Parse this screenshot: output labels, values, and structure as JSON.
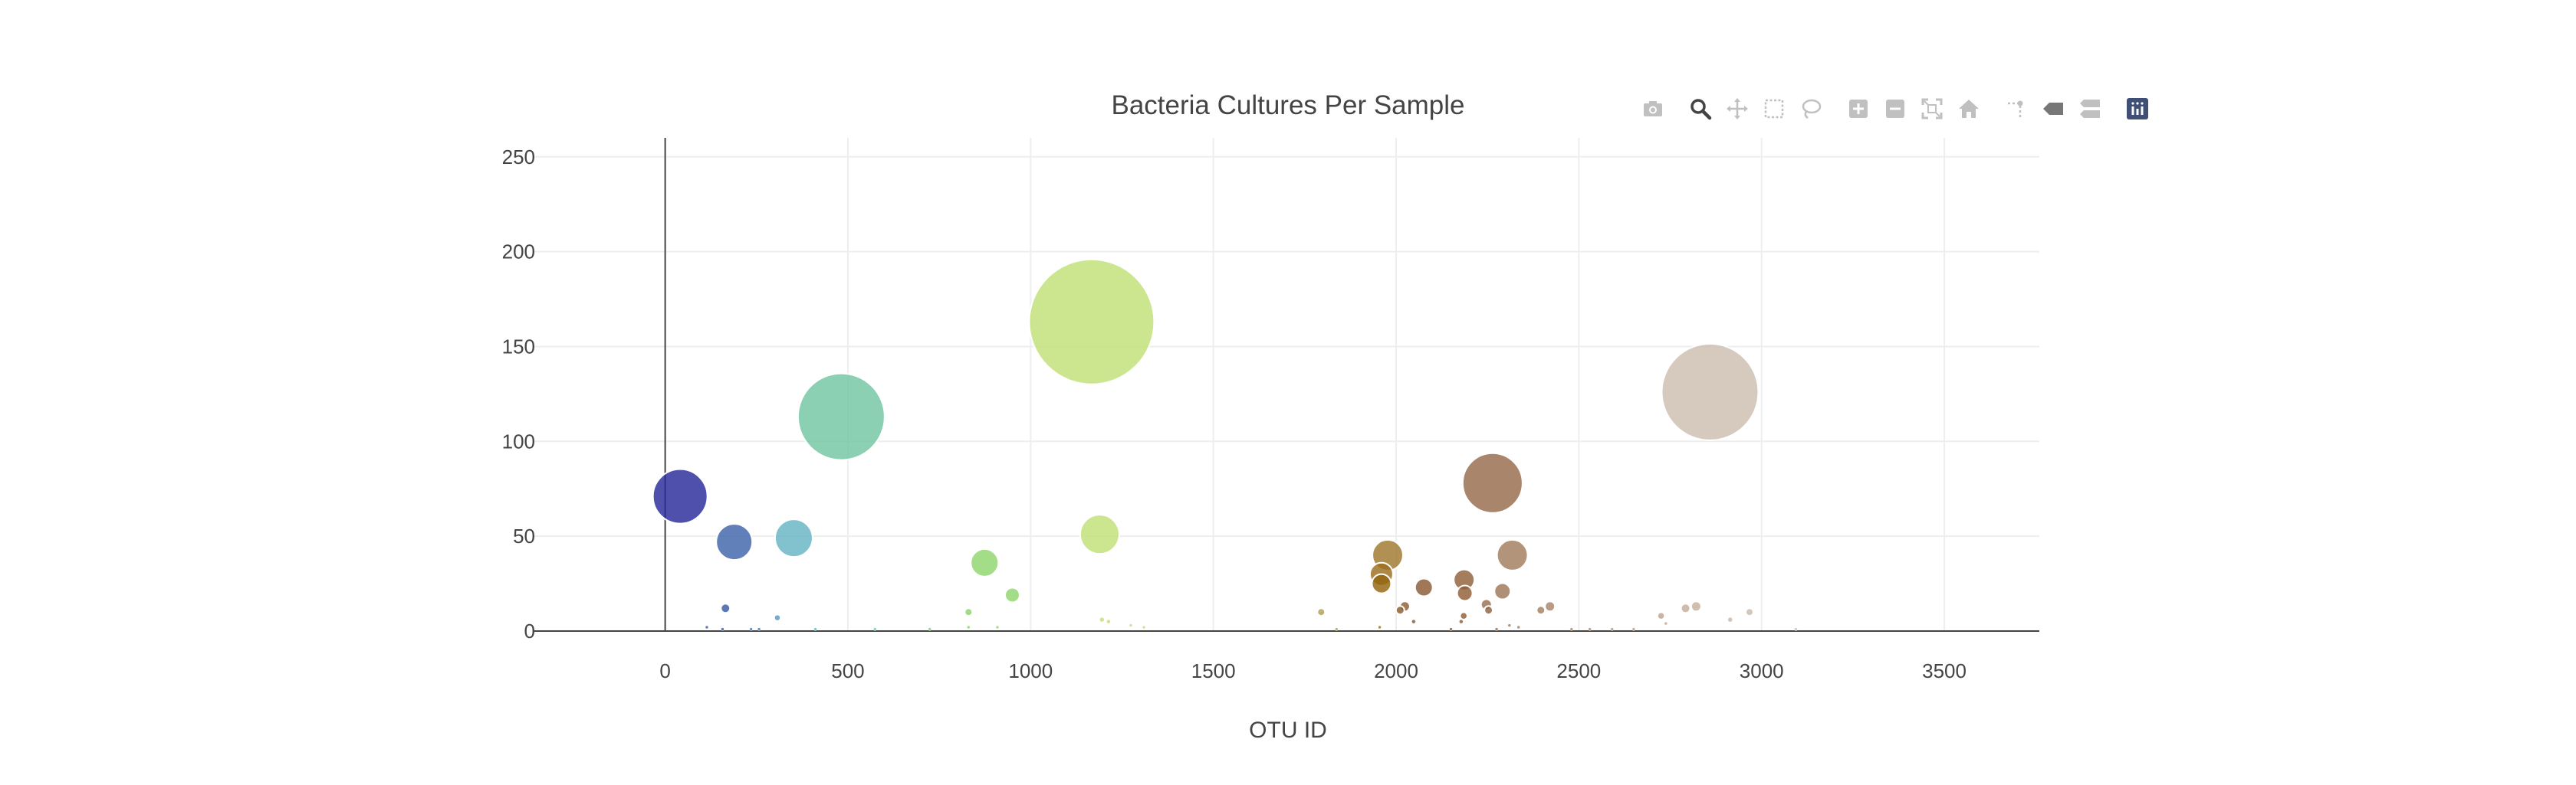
{
  "chart_data": {
    "type": "scatter",
    "title": "Bacteria Cultures Per Sample",
    "xlabel": "OTU ID",
    "ylabel": "",
    "xlim": [
      -360,
      3760
    ],
    "ylim": [
      0,
      260
    ],
    "xticks": [
      0,
      500,
      1000,
      1500,
      2000,
      2500,
      3000,
      3500
    ],
    "yticks": [
      0,
      50,
      100,
      150,
      200,
      250
    ],
    "grid": true,
    "legend": "none",
    "marker_size_encodes": "sample value",
    "marker_color_encodes": "OTU ID",
    "points": [
      {
        "x": 41,
        "y": 71,
        "color": "#272a99"
      },
      {
        "x": 189,
        "y": 47,
        "color": "#3e63a8"
      },
      {
        "x": 352,
        "y": 49,
        "color": "#66b3c3"
      },
      {
        "x": 482,
        "y": 113,
        "color": "#72c6a1"
      },
      {
        "x": 1167,
        "y": 163,
        "color": "#bfe176"
      },
      {
        "x": 1189,
        "y": 51,
        "color": "#bfe176"
      },
      {
        "x": 874,
        "y": 36,
        "color": "#8fd56c"
      },
      {
        "x": 950,
        "y": 19,
        "color": "#8fd56c"
      },
      {
        "x": 2264,
        "y": 78,
        "color": "#956a4b"
      },
      {
        "x": 2859,
        "y": 126,
        "color": "#cdbeb0"
      },
      {
        "x": 1977,
        "y": 40,
        "color": "#a0782e"
      },
      {
        "x": 2318,
        "y": 40,
        "color": "#a07c5d"
      },
      {
        "x": 1960,
        "y": 30,
        "color": "#9b6e1e"
      },
      {
        "x": 1960,
        "y": 25,
        "color": "#94650f"
      },
      {
        "x": 2186,
        "y": 27,
        "color": "#906039"
      },
      {
        "x": 2076,
        "y": 23,
        "color": "#8a5a35"
      },
      {
        "x": 2188,
        "y": 20,
        "color": "#8f5e37"
      },
      {
        "x": 2291,
        "y": 21,
        "color": "#9e7658"
      },
      {
        "x": 2247,
        "y": 14,
        "color": "#98704f"
      },
      {
        "x": 2253,
        "y": 11,
        "color": "#8e6442"
      },
      {
        "x": 2024,
        "y": 13,
        "color": "#8d5e33"
      },
      {
        "x": 2011,
        "y": 11,
        "color": "#8a5a2e"
      },
      {
        "x": 2421,
        "y": 13,
        "color": "#a98469"
      },
      {
        "x": 2396,
        "y": 11,
        "color": "#a48063"
      },
      {
        "x": 2792,
        "y": 12,
        "color": "#c4ac98"
      },
      {
        "x": 2821,
        "y": 13,
        "color": "#c6b09e"
      },
      {
        "x": 2967,
        "y": 10,
        "color": "#cbbcae"
      },
      {
        "x": 2725,
        "y": 8,
        "color": "#bfa48f"
      },
      {
        "x": 1795,
        "y": 10,
        "color": "#b09f58"
      },
      {
        "x": 165,
        "y": 12,
        "color": "#3a5aa5"
      },
      {
        "x": 307,
        "y": 7,
        "color": "#5a99c0"
      },
      {
        "x": 830,
        "y": 10,
        "color": "#8cd26a"
      },
      {
        "x": 2914,
        "y": 6,
        "color": "#c9b7a8"
      },
      {
        "x": 1195,
        "y": 6,
        "color": "#c3e07a"
      },
      {
        "x": 1213,
        "y": 5,
        "color": "#c3e07a"
      },
      {
        "x": 2185,
        "y": 8,
        "color": "#8f5e37"
      },
      {
        "x": 2048,
        "y": 5,
        "color": "#8b5a30"
      },
      {
        "x": 2178,
        "y": 5,
        "color": "#8f5e37"
      },
      {
        "x": 2738,
        "y": 4,
        "color": "#bfa48f"
      },
      {
        "x": 1274,
        "y": 3,
        "color": "#c6df7c"
      },
      {
        "x": 1310,
        "y": 2,
        "color": "#c6df7c"
      },
      {
        "x": 909,
        "y": 2,
        "color": "#8fd56c"
      },
      {
        "x": 830,
        "y": 2,
        "color": "#8cd26a"
      },
      {
        "x": 2335,
        "y": 2,
        "color": "#a07c5d"
      },
      {
        "x": 2310,
        "y": 3,
        "color": "#a07c5d"
      },
      {
        "x": 114,
        "y": 2,
        "color": "#3a5aa5"
      },
      {
        "x": 157,
        "y": 1,
        "color": "#3a5aa5"
      },
      {
        "x": 235,
        "y": 1,
        "color": "#4a7aaf"
      },
      {
        "x": 257,
        "y": 1,
        "color": "#4a7aaf"
      },
      {
        "x": 411,
        "y": 1,
        "color": "#6bbbbf"
      },
      {
        "x": 574,
        "y": 1,
        "color": "#7acb9c"
      },
      {
        "x": 724,
        "y": 1,
        "color": "#84cf86"
      },
      {
        "x": 1837,
        "y": 1,
        "color": "#b3a462"
      },
      {
        "x": 1955,
        "y": 2,
        "color": "#9b6e1e"
      },
      {
        "x": 2150,
        "y": 1,
        "color": "#8f5e37"
      },
      {
        "x": 2275,
        "y": 1,
        "color": "#98704f"
      },
      {
        "x": 2480,
        "y": 1,
        "color": "#ac8a70"
      },
      {
        "x": 2530,
        "y": 1,
        "color": "#b09077"
      },
      {
        "x": 2591,
        "y": 1,
        "color": "#b49781"
      },
      {
        "x": 2650,
        "y": 1,
        "color": "#b89d88"
      },
      {
        "x": 3094,
        "y": 1,
        "color": "#d0c3b7"
      }
    ]
  },
  "modebar": {
    "buttons": [
      {
        "name": "download-plot-button",
        "icon": "camera-icon",
        "active": false
      },
      {
        "name": "zoom-button",
        "icon": "magnifier-icon",
        "active": true
      },
      {
        "name": "pan-button",
        "icon": "cross-arrows-icon",
        "active": false
      },
      {
        "name": "box-select-button",
        "icon": "dashed-box-icon",
        "active": false
      },
      {
        "name": "lasso-select-button",
        "icon": "lasso-icon",
        "active": false
      },
      {
        "name": "zoom-in-button",
        "icon": "plus-box-icon",
        "active": false
      },
      {
        "name": "zoom-out-button",
        "icon": "minus-box-icon",
        "active": false
      },
      {
        "name": "autoscale-button",
        "icon": "autoscale-icon",
        "active": false
      },
      {
        "name": "reset-axes-button",
        "icon": "home-icon",
        "active": false
      },
      {
        "name": "toggle-spike-lines-button",
        "icon": "spike-lines-icon",
        "active": false
      },
      {
        "name": "hover-closest-button",
        "icon": "hover-closest-icon",
        "active": false
      },
      {
        "name": "hover-compare-button",
        "icon": "hover-compare-icon",
        "active": false
      },
      {
        "name": "plotly-logo-button",
        "icon": "plotly-logo-icon",
        "active": false
      }
    ],
    "colors": {
      "idle": "#c0c0c0",
      "active": "#444444",
      "hover-closest": "#777777",
      "logo": "#3f4f75"
    }
  }
}
